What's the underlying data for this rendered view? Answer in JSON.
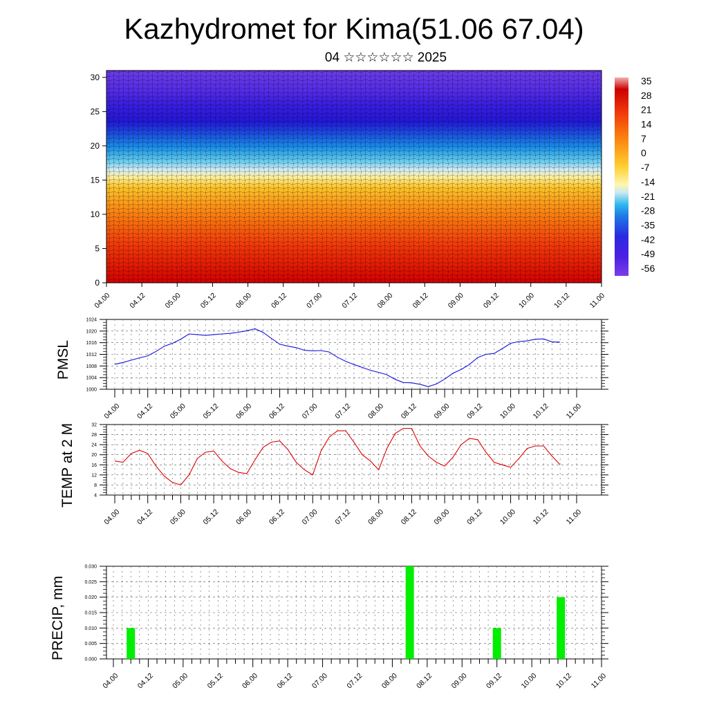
{
  "title": "Kazhydromet for Kima(51.06 67.04)",
  "subtitle": "04 ☆☆☆☆☆☆ 2025",
  "colors": {
    "pmsl_line": "#1010dd",
    "temp_line": "#dd0000",
    "precip_bar": "#00ee00"
  },
  "chart_data": [
    {
      "id": "profile",
      "type": "heatmap",
      "x_tick_labels": [
        "04.00",
        "04.12",
        "05.00",
        "05.12",
        "06.00",
        "06.12",
        "07.00",
        "07.12",
        "08.00",
        "08.12",
        "09.00",
        "09.12",
        "10.00",
        "10.12",
        "11.00"
      ],
      "y_tick_labels": [
        "0",
        "5",
        "10",
        "15",
        "20",
        "25",
        "30"
      ],
      "ylim": [
        0,
        31
      ],
      "colorbar_labels": [
        "35",
        "28",
        "21",
        "14",
        "7",
        "0",
        "-7",
        "-14",
        "-21",
        "-28",
        "-35",
        "-42",
        "-49",
        "-56"
      ],
      "colorbar_range": [
        -63,
        42
      ]
    },
    {
      "id": "pmsl",
      "type": "line",
      "ylabel": "PMSL",
      "y_tick_labels": [
        "1000",
        "1004",
        "1008",
        "1012",
        "1016",
        "1020",
        "1024"
      ],
      "ylim": [
        1000,
        1024
      ],
      "x_tick_labels": [
        "04.00",
        "04.12",
        "05.00",
        "05.12",
        "06.00",
        "06.12",
        "07.00",
        "07.12",
        "08.00",
        "08.12",
        "09.00",
        "09.12",
        "10.00",
        "10.12",
        "11.00"
      ],
      "x": [
        0,
        3,
        6,
        9,
        12,
        15,
        18,
        21,
        24,
        27,
        30,
        33,
        36,
        39,
        42,
        45,
        48,
        51,
        54,
        57,
        60,
        63,
        66,
        69,
        72,
        75,
        78,
        81,
        84,
        87,
        90,
        93,
        96,
        99,
        102,
        105,
        108,
        111,
        114,
        117,
        120,
        123,
        126,
        129,
        132,
        135,
        138,
        141,
        144,
        147,
        150,
        153,
        156,
        159,
        162
      ],
      "values": [
        1008.6,
        1009.2,
        1010.0,
        1010.8,
        1011.5,
        1013.0,
        1014.8,
        1015.8,
        1017.2,
        1019.0,
        1018.8,
        1018.5,
        1018.8,
        1019.0,
        1019.2,
        1019.6,
        1020.1,
        1020.8,
        1019.5,
        1017.5,
        1015.5,
        1014.8,
        1014.3,
        1013.4,
        1013.2,
        1013.3,
        1012.8,
        1011.0,
        1009.6,
        1008.5,
        1007.5,
        1006.5,
        1005.8,
        1005.0,
        1003.4,
        1002.3,
        1002.2,
        1001.7,
        1000.9,
        1001.8,
        1003.5,
        1005.5,
        1006.8,
        1008.5,
        1010.9,
        1012.0,
        1012.3,
        1014.0,
        1015.8,
        1016.4,
        1016.6,
        1017.2,
        1017.3,
        1016.3,
        1016.2
      ]
    },
    {
      "id": "temp",
      "type": "line",
      "ylabel": "TEMP at 2 M",
      "y_tick_labels": [
        "4",
        "8",
        "12",
        "16",
        "20",
        "24",
        "28",
        "32"
      ],
      "ylim": [
        4,
        32
      ],
      "x_tick_labels": [
        "04.00",
        "04.12",
        "05.00",
        "05.12",
        "06.00",
        "06.12",
        "07.00",
        "07.12",
        "08.00",
        "08.12",
        "09.00",
        "09.12",
        "10.00",
        "10.12",
        "11.00"
      ],
      "x": [
        0,
        3,
        6,
        9,
        12,
        15,
        18,
        21,
        24,
        27,
        30,
        33,
        36,
        39,
        42,
        45,
        48,
        51,
        54,
        57,
        60,
        63,
        66,
        69,
        72,
        75,
        78,
        81,
        84,
        87,
        90,
        93,
        96,
        99,
        102,
        105,
        108,
        111,
        114,
        117,
        120,
        123,
        126,
        129,
        132,
        135,
        138,
        141,
        144,
        147,
        150,
        153,
        156,
        159,
        162
      ],
      "values": [
        17.5,
        17.0,
        20.5,
        21.8,
        20.5,
        15.5,
        11.5,
        9.0,
        8.0,
        12.0,
        18.5,
        21.0,
        21.5,
        17.5,
        14.5,
        13.0,
        12.5,
        18.0,
        23.0,
        25.0,
        25.5,
        22.0,
        17.0,
        14.0,
        12.0,
        21.5,
        27.0,
        29.5,
        29.5,
        25.0,
        20.0,
        17.5,
        14.0,
        22.5,
        28.5,
        30.5,
        30.5,
        23.5,
        19.5,
        17.0,
        15.5,
        19.0,
        24.0,
        26.5,
        26.0,
        21.0,
        17.0,
        16.0,
        15.0,
        18.5,
        22.5,
        23.5,
        23.5,
        19.5,
        16.0
      ]
    },
    {
      "id": "precip",
      "type": "bar",
      "ylabel": "PRECIP, mm",
      "y_tick_labels": [
        "0.000",
        "0.005",
        "0.010",
        "0.015",
        "0.020",
        "0.025",
        "0.030"
      ],
      "ylim": [
        0,
        0.03
      ],
      "x_tick_labels": [
        "04.00",
        "04.12",
        "05.00",
        "05.12",
        "06.00",
        "06.12",
        "07.00",
        "07.12",
        "08.00",
        "08.12",
        "09.00",
        "09.12",
        "10.00",
        "10.12",
        "11.00"
      ],
      "x": [
        6,
        102,
        132,
        154
      ],
      "values": [
        0.01,
        0.03,
        0.01,
        0.02
      ]
    }
  ]
}
